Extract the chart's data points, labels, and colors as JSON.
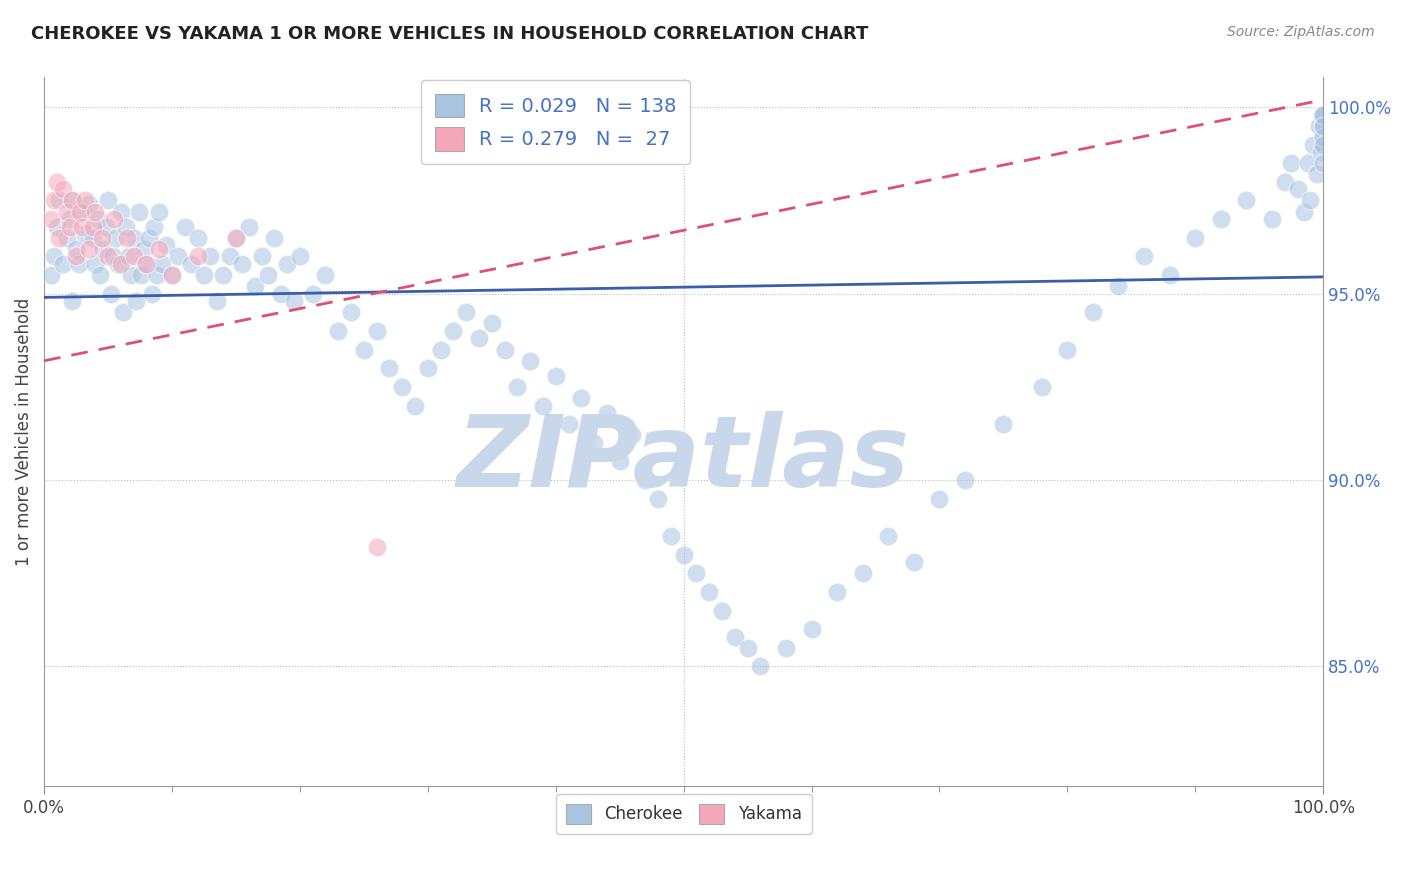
{
  "title": "CHEROKEE VS YAKAMA 1 OR MORE VEHICLES IN HOUSEHOLD CORRELATION CHART",
  "source_text": "Source: ZipAtlas.com",
  "ylabel": "1 or more Vehicles in Household",
  "xlim": [
    0.0,
    1.0
  ],
  "ylim": [
    0.818,
    1.008
  ],
  "x_tick_labels": [
    "0.0%",
    "100.0%"
  ],
  "y_tick_labels_right": [
    "100.0%",
    "95.0%",
    "90.0%",
    "85.0%"
  ],
  "y_tick_values_right": [
    1.0,
    0.95,
    0.9,
    0.85
  ],
  "legend_r_cherokee": "0.029",
  "legend_n_cherokee": "138",
  "legend_r_yakama": "0.279",
  "legend_n_yakama": " 27",
  "cherokee_color": "#a8c4e0",
  "yakama_color": "#f4a7b9",
  "cherokee_line_color": "#3a5fa8",
  "yakama_line_color": "#e05070",
  "watermark_text": "ZIPatlas",
  "watermark_color": "#c8d8ea",
  "background_color": "#ffffff",
  "dot_size": 180,
  "dot_alpha": 0.55,
  "cherokee_x": [
    0.005,
    0.008,
    0.01,
    0.012,
    0.015,
    0.018,
    0.02,
    0.022,
    0.022,
    0.025,
    0.027,
    0.03,
    0.032,
    0.035,
    0.038,
    0.04,
    0.042,
    0.044,
    0.046,
    0.048,
    0.05,
    0.052,
    0.054,
    0.056,
    0.058,
    0.06,
    0.062,
    0.064,
    0.066,
    0.068,
    0.07,
    0.072,
    0.074,
    0.076,
    0.078,
    0.08,
    0.082,
    0.084,
    0.086,
    0.088,
    0.09,
    0.092,
    0.095,
    0.1,
    0.105,
    0.11,
    0.115,
    0.12,
    0.125,
    0.13,
    0.135,
    0.14,
    0.145,
    0.15,
    0.155,
    0.16,
    0.165,
    0.17,
    0.175,
    0.18,
    0.185,
    0.19,
    0.195,
    0.2,
    0.21,
    0.22,
    0.23,
    0.24,
    0.25,
    0.26,
    0.27,
    0.28,
    0.29,
    0.3,
    0.31,
    0.32,
    0.33,
    0.34,
    0.35,
    0.36,
    0.37,
    0.38,
    0.39,
    0.4,
    0.41,
    0.42,
    0.43,
    0.44,
    0.45,
    0.46,
    0.47,
    0.48,
    0.49,
    0.5,
    0.51,
    0.52,
    0.53,
    0.54,
    0.55,
    0.56,
    0.58,
    0.6,
    0.62,
    0.64,
    0.66,
    0.68,
    0.7,
    0.72,
    0.75,
    0.78,
    0.8,
    0.82,
    0.84,
    0.86,
    0.88,
    0.9,
    0.92,
    0.94,
    0.96,
    0.97,
    0.975,
    0.98,
    0.985,
    0.988,
    0.99,
    0.992,
    0.995,
    0.997,
    0.998,
    0.999,
    1.0,
    1.0,
    1.0,
    1.0,
    1.0,
    1.0,
    1.0,
    1.0
  ],
  "cherokee_y": [
    0.955,
    0.96,
    0.968,
    0.975,
    0.958,
    0.965,
    0.97,
    0.948,
    0.975,
    0.962,
    0.958,
    0.972,
    0.966,
    0.974,
    0.965,
    0.958,
    0.97,
    0.955,
    0.962,
    0.968,
    0.975,
    0.95,
    0.96,
    0.965,
    0.958,
    0.972,
    0.945,
    0.968,
    0.96,
    0.955,
    0.965,
    0.948,
    0.972,
    0.955,
    0.962,
    0.958,
    0.965,
    0.95,
    0.968,
    0.955,
    0.972,
    0.958,
    0.963,
    0.955,
    0.96,
    0.968,
    0.958,
    0.965,
    0.955,
    0.96,
    0.948,
    0.955,
    0.96,
    0.965,
    0.958,
    0.968,
    0.952,
    0.96,
    0.955,
    0.965,
    0.95,
    0.958,
    0.948,
    0.96,
    0.95,
    0.955,
    0.94,
    0.945,
    0.935,
    0.94,
    0.93,
    0.925,
    0.92,
    0.93,
    0.935,
    0.94,
    0.945,
    0.938,
    0.942,
    0.935,
    0.925,
    0.932,
    0.92,
    0.928,
    0.915,
    0.922,
    0.91,
    0.918,
    0.905,
    0.912,
    0.9,
    0.895,
    0.885,
    0.88,
    0.875,
    0.87,
    0.865,
    0.858,
    0.855,
    0.85,
    0.855,
    0.86,
    0.87,
    0.875,
    0.885,
    0.878,
    0.895,
    0.9,
    0.915,
    0.925,
    0.935,
    0.945,
    0.952,
    0.96,
    0.955,
    0.965,
    0.97,
    0.975,
    0.97,
    0.98,
    0.985,
    0.978,
    0.972,
    0.985,
    0.975,
    0.99,
    0.982,
    0.995,
    0.988,
    0.998,
    0.992,
    0.995,
    0.998,
    0.985,
    0.992,
    0.998,
    0.99,
    0.995
  ],
  "yakama_x": [
    0.005,
    0.008,
    0.01,
    0.012,
    0.015,
    0.018,
    0.02,
    0.022,
    0.025,
    0.028,
    0.03,
    0.032,
    0.035,
    0.038,
    0.04,
    0.045,
    0.05,
    0.055,
    0.06,
    0.065,
    0.07,
    0.08,
    0.09,
    0.1,
    0.12,
    0.15,
    0.26
  ],
  "yakama_y": [
    0.97,
    0.975,
    0.98,
    0.965,
    0.978,
    0.972,
    0.968,
    0.975,
    0.96,
    0.972,
    0.968,
    0.975,
    0.962,
    0.968,
    0.972,
    0.965,
    0.96,
    0.97,
    0.958,
    0.965,
    0.96,
    0.958,
    0.962,
    0.955,
    0.96,
    0.965,
    0.882
  ],
  "cherokee_line_x": [
    0.0,
    1.0
  ],
  "cherokee_line_y": [
    0.949,
    0.9545
  ],
  "yakama_line_x": [
    0.0,
    1.0
  ],
  "yakama_line_y": [
    0.932,
    1.002
  ]
}
